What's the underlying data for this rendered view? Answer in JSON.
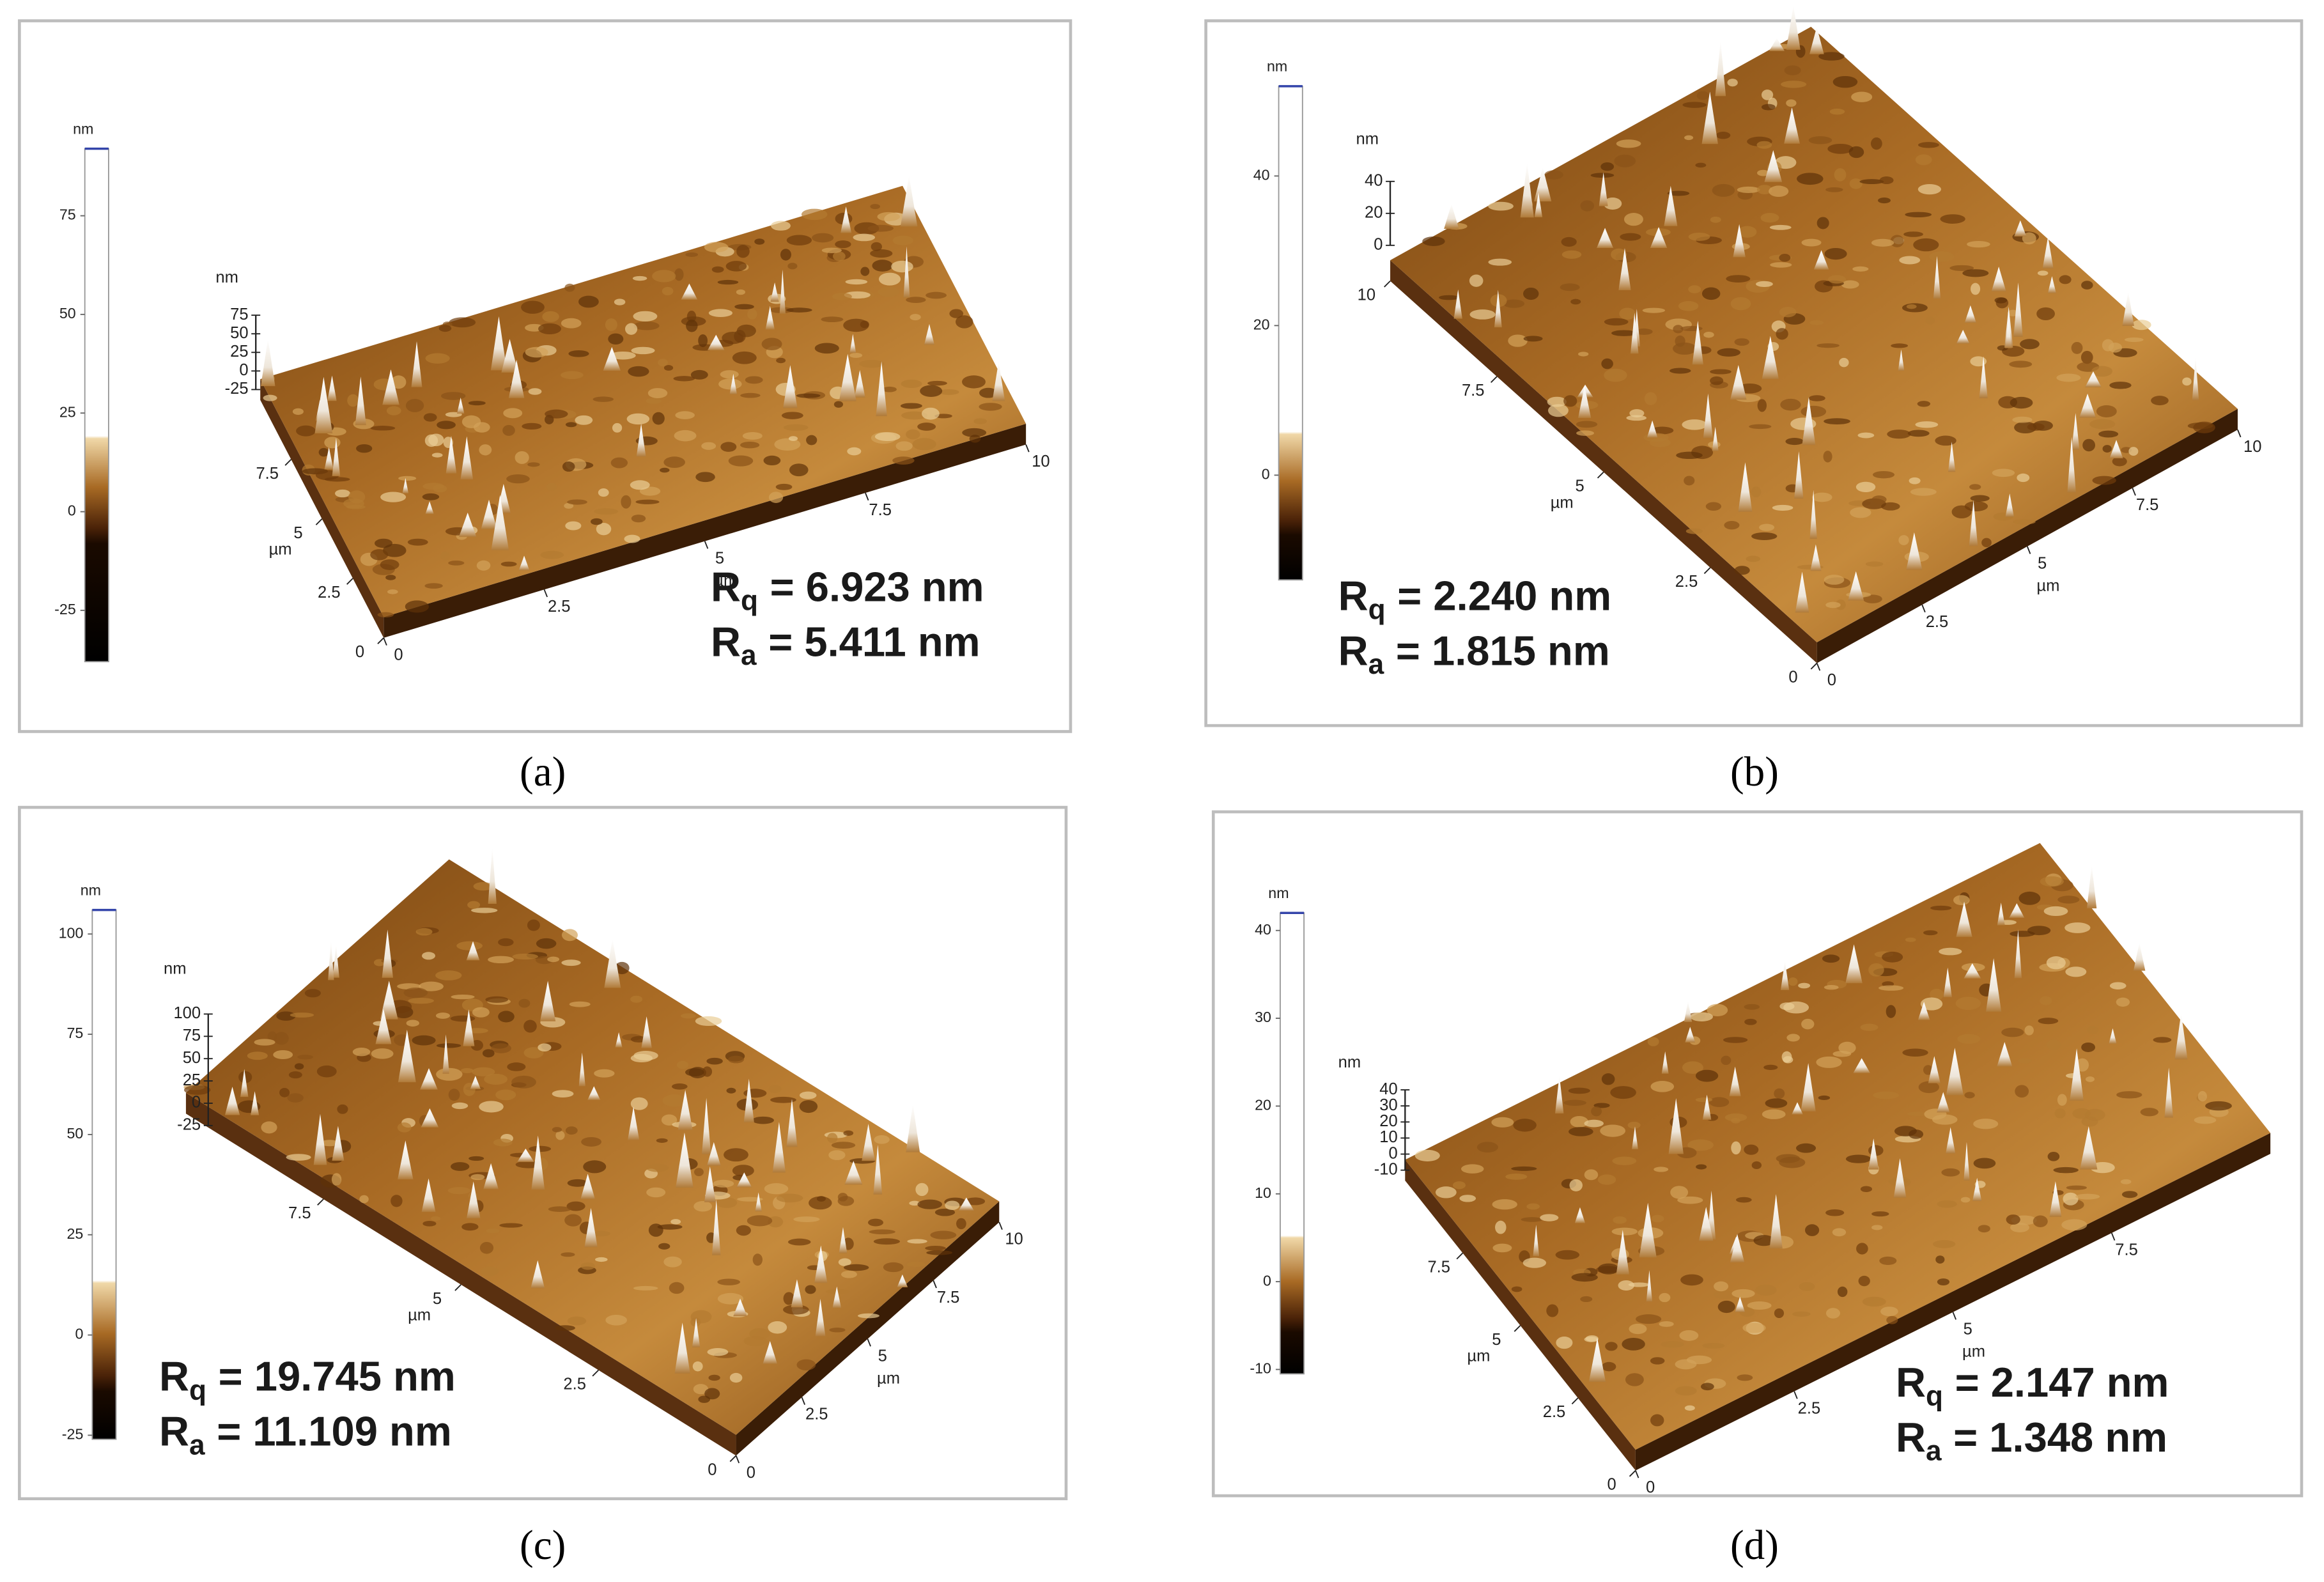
{
  "panels": [
    {
      "caption": "(a)",
      "colorbar": {
        "unit": "nm",
        "lim": [
          -38,
          92
        ],
        "ticks": [
          -25,
          0,
          25,
          50,
          75
        ]
      },
      "surface": {
        "z_unit": "nm",
        "zlim": [
          -25,
          75
        ],
        "zticks": [
          -25,
          0,
          25,
          50,
          75
        ],
        "x_unit": "µm",
        "xlim": [
          0,
          10
        ],
        "xticks": [
          0,
          2.5,
          5,
          7.5,
          10
        ],
        "y_unit": "µm",
        "ylim": [
          0,
          10
        ],
        "yticks": [
          0,
          2.5,
          5,
          7.5
        ]
      },
      "roughness": [
        {
          "symbol": "R",
          "subscript": "q",
          "text": "= 6.923 nm"
        },
        {
          "symbol": "R",
          "subscript": "a",
          "text": "= 5.411 nm"
        }
      ]
    },
    {
      "caption": "(b)",
      "colorbar": {
        "unit": "nm",
        "lim": [
          -14,
          52
        ],
        "ticks": [
          0,
          20,
          40
        ]
      },
      "surface": {
        "z_unit": "nm",
        "zlim": [
          0,
          40
        ],
        "zticks": [
          0,
          20,
          40
        ],
        "x_unit": "µm",
        "xlim": [
          0,
          10
        ],
        "xticks": [
          0,
          2.5,
          5,
          7.5,
          10
        ],
        "y_unit": "µm",
        "ylim": [
          0,
          10
        ],
        "yticks": [
          0,
          2.5,
          5,
          7.5,
          10
        ]
      },
      "roughness": [
        {
          "symbol": "R",
          "subscript": "q",
          "text": "= 2.240 nm"
        },
        {
          "symbol": "R",
          "subscript": "a",
          "text": "= 1.815 nm"
        }
      ]
    },
    {
      "caption": "(c)",
      "colorbar": {
        "unit": "nm",
        "lim": [
          -26,
          106
        ],
        "ticks": [
          -25,
          0,
          25,
          50,
          75,
          100
        ]
      },
      "surface": {
        "z_unit": "nm",
        "zlim": [
          -25,
          100
        ],
        "zticks": [
          -25,
          0,
          25,
          50,
          75,
          100
        ],
        "x_unit": "µm",
        "xlim": [
          0,
          10
        ],
        "xticks": [
          0,
          2.5,
          5,
          7.5,
          10
        ],
        "y_unit": "µm",
        "ylim": [
          0,
          10
        ],
        "yticks": [
          0,
          2.5,
          5,
          7.5
        ]
      },
      "roughness": [
        {
          "symbol": "R",
          "subscript": "q",
          "text": "= 19.745 nm"
        },
        {
          "symbol": "R",
          "subscript": "a",
          "text": "= 11.109 nm"
        }
      ]
    },
    {
      "caption": "(d)",
      "colorbar": {
        "unit": "nm",
        "lim": [
          -10.5,
          42
        ],
        "ticks": [
          -10,
          0,
          10,
          20,
          30,
          40
        ]
      },
      "surface": {
        "z_unit": "nm",
        "zlim": [
          -10,
          40
        ],
        "zticks": [
          -10,
          0,
          10,
          20,
          30,
          40
        ],
        "x_unit": "µm",
        "xlim": [
          0,
          10
        ],
        "xticks": [
          0,
          2.5,
          5,
          7.5
        ],
        "y_unit": "µm",
        "ylim": [
          0,
          10
        ],
        "yticks": [
          0,
          2.5,
          5,
          7.5
        ]
      },
      "roughness": [
        {
          "symbol": "R",
          "subscript": "q",
          "text": "= 2.147 nm"
        },
        {
          "symbol": "R",
          "subscript": "a",
          "text": "= 1.348 nm"
        }
      ]
    }
  ]
}
